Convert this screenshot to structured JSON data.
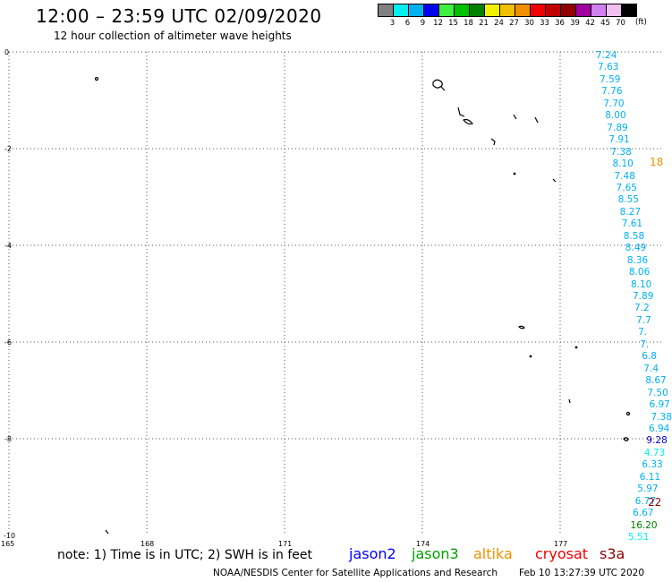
{
  "header": {
    "title": "12:00 – 23:59 UTC 02/09/2020",
    "subtitle": "12 hour collection of altimeter wave heights"
  },
  "scale": {
    "labels": [
      "3",
      "6",
      "9",
      "12",
      "15",
      "18",
      "21",
      "24",
      "27",
      "30",
      "33",
      "36",
      "39",
      "42",
      "45",
      "70"
    ],
    "unit": "(ft)",
    "colors": [
      "#808080",
      "#00f0f0",
      "#00b0f0",
      "#0000f0",
      "#40f040",
      "#00c000",
      "#008000",
      "#f0f000",
      "#f0c000",
      "#f09000",
      "#f00000",
      "#c00000",
      "#900000",
      "#a000a0",
      "#d080f0",
      "#f0c0f0",
      "#000000"
    ]
  },
  "axes": {
    "lon_ticks": [
      "165",
      "168",
      "171",
      "174",
      "177"
    ],
    "lat_ticks": [
      "0",
      "-2",
      "-4",
      "-6",
      "-8",
      "-10"
    ]
  },
  "track_values": [
    {
      "text": "7.24",
      "color": "#00b0f0"
    },
    {
      "text": "7.63",
      "color": "#00b0f0"
    },
    {
      "text": "7.59",
      "color": "#00b0f0"
    },
    {
      "text": "7.76",
      "color": "#00b0f0"
    },
    {
      "text": "7.70",
      "color": "#00b0f0"
    },
    {
      "text": "8.00",
      "color": "#00b0f0"
    },
    {
      "text": "7.89",
      "color": "#00b0f0"
    },
    {
      "text": "7.91",
      "color": "#00b0f0"
    },
    {
      "text": "7.38",
      "color": "#00b0f0"
    },
    {
      "text": "8.10",
      "color": "#00b0f0"
    },
    {
      "text": "7.48",
      "color": "#00b0f0"
    },
    {
      "text": "7.65",
      "color": "#00b0f0"
    },
    {
      "text": "8.55",
      "color": "#00b0f0"
    },
    {
      "text": "8.27",
      "color": "#00b0f0"
    },
    {
      "text": "7.61",
      "color": "#00b0f0"
    },
    {
      "text": "8.58",
      "color": "#00b0f0"
    },
    {
      "text": "8.49",
      "color": "#00b0f0"
    },
    {
      "text": "8.36",
      "color": "#00b0f0"
    },
    {
      "text": "8.06",
      "color": "#00b0f0"
    },
    {
      "text": "8.10",
      "color": "#00b0f0"
    },
    {
      "text": "7.89",
      "color": "#00b0f0"
    },
    {
      "text": "7.2",
      "color": "#00b0f0"
    },
    {
      "text": "7.7",
      "color": "#00b0f0"
    },
    {
      "text": "7.",
      "color": "#00b0f0"
    },
    {
      "text": "7.",
      "color": "#00b0f0"
    },
    {
      "text": "6.8",
      "color": "#00b0f0"
    },
    {
      "text": "7.4",
      "color": "#00b0f0"
    },
    {
      "text": "8.67",
      "color": "#00b0f0"
    },
    {
      "text": "7.50",
      "color": "#00b0f0"
    },
    {
      "text": "6.97",
      "color": "#00b0f0"
    },
    {
      "text": "7.38",
      "color": "#00b0f0"
    },
    {
      "text": "6.94",
      "color": "#00b0f0"
    },
    {
      "text": "9.28",
      "color": "#0000c0"
    },
    {
      "text": "4.73",
      "color": "#00f0f0"
    },
    {
      "text": "6.33",
      "color": "#00b0f0"
    },
    {
      "text": "6.11",
      "color": "#00b0f0"
    },
    {
      "text": "5.97",
      "color": "#00b0f0"
    },
    {
      "text": "6.77",
      "color": "#00b0f0"
    },
    {
      "text": "6.67",
      "color": "#00b0f0"
    },
    {
      "text": "16.20",
      "color": "#008000"
    },
    {
      "text": "5.51",
      "color": "#00f0f0"
    }
  ],
  "edge_values": [
    {
      "text": "18",
      "color": "#f09000"
    },
    {
      "text": "22",
      "color": "#900000"
    }
  ],
  "note": "note: 1) Time is in UTC; 2) SWH is in feet",
  "satellites": [
    {
      "name": "jason2",
      "color": "#0000ff"
    },
    {
      "name": "jason3",
      "color": "#00a000"
    },
    {
      "name": "altika",
      "color": "#f09000"
    },
    {
      "name": "cryosat",
      "color": "#f00000"
    },
    {
      "name": "s3a",
      "color": "#900000"
    }
  ],
  "footer": {
    "credit": "NOAA/NESDIS Center for Satellite Applications and Research",
    "timestamp": "Feb 10 13:27:39 UTC 2020"
  }
}
